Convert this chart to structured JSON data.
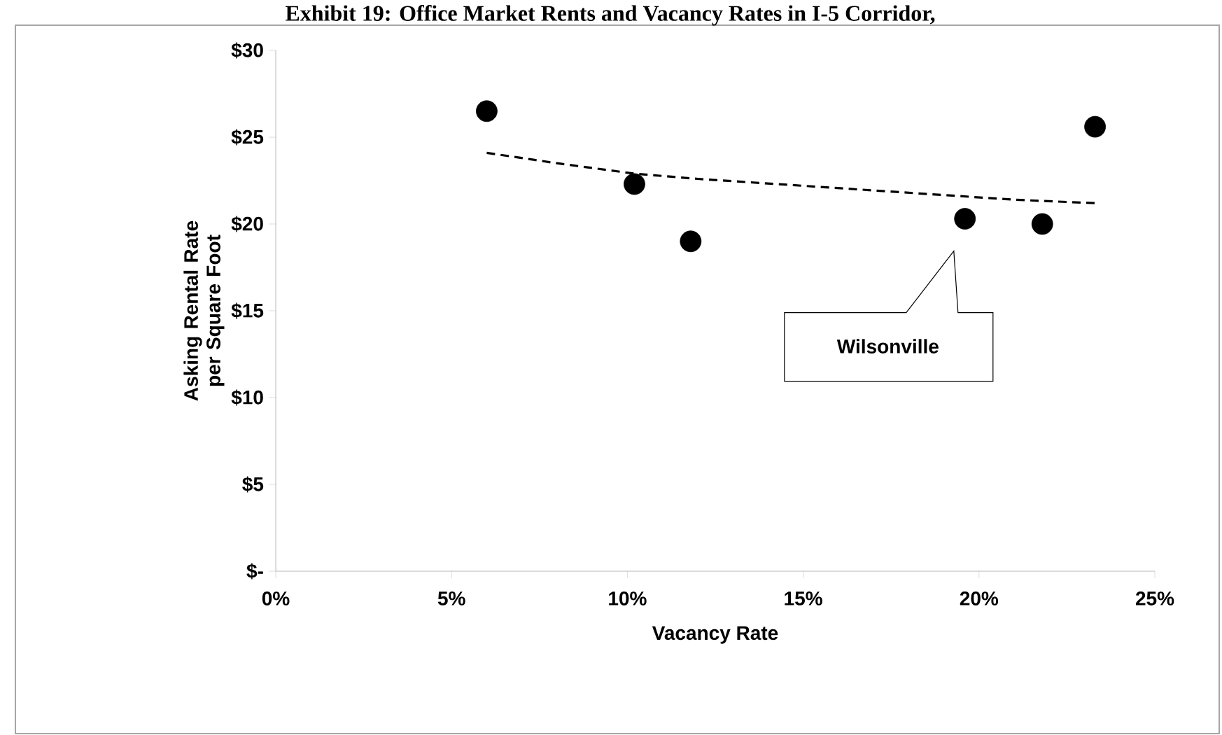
{
  "chart_data": {
    "type": "scatter",
    "title": "Exhibit 19: Office Market Rents and Vacancy Rates in I-5 Corridor,",
    "xlabel": "Vacancy Rate",
    "ylabel": "Asking Rental Rate per Square Foot",
    "xlim": [
      0,
      25
    ],
    "ylim": [
      0,
      30
    ],
    "xticks": [
      {
        "value": 0,
        "label": "0%"
      },
      {
        "value": 5,
        "label": "5%"
      },
      {
        "value": 10,
        "label": "10%"
      },
      {
        "value": 15,
        "label": "15%"
      },
      {
        "value": 20,
        "label": "20%"
      },
      {
        "value": 25,
        "label": "25%"
      }
    ],
    "yticks": [
      {
        "value": 0,
        "label": "$-"
      },
      {
        "value": 5,
        "label": "$5"
      },
      {
        "value": 10,
        "label": "$10"
      },
      {
        "value": 15,
        "label": "$15"
      },
      {
        "value": 20,
        "label": "$20"
      },
      {
        "value": 25,
        "label": "$25"
      },
      {
        "value": 30,
        "label": "$30"
      }
    ],
    "series": [
      {
        "marker": "circle",
        "color": "#000000",
        "x": [
          6.0,
          10.2,
          11.8,
          19.6,
          21.8,
          23.3
        ],
        "values": [
          26.5,
          22.3,
          19.0,
          20.3,
          20.0,
          25.6
        ]
      },
      {
        "type": "line",
        "line_style": "dashed",
        "marker": "none",
        "color": "#000000",
        "x": [
          6,
          8,
          10.2,
          12,
          15,
          18,
          21,
          23.3
        ],
        "values": [
          24.1,
          23.5,
          22.9,
          22.6,
          22.2,
          21.8,
          21.4,
          21.2
        ]
      }
    ],
    "annotations": [
      "Wilsonville"
    ]
  }
}
